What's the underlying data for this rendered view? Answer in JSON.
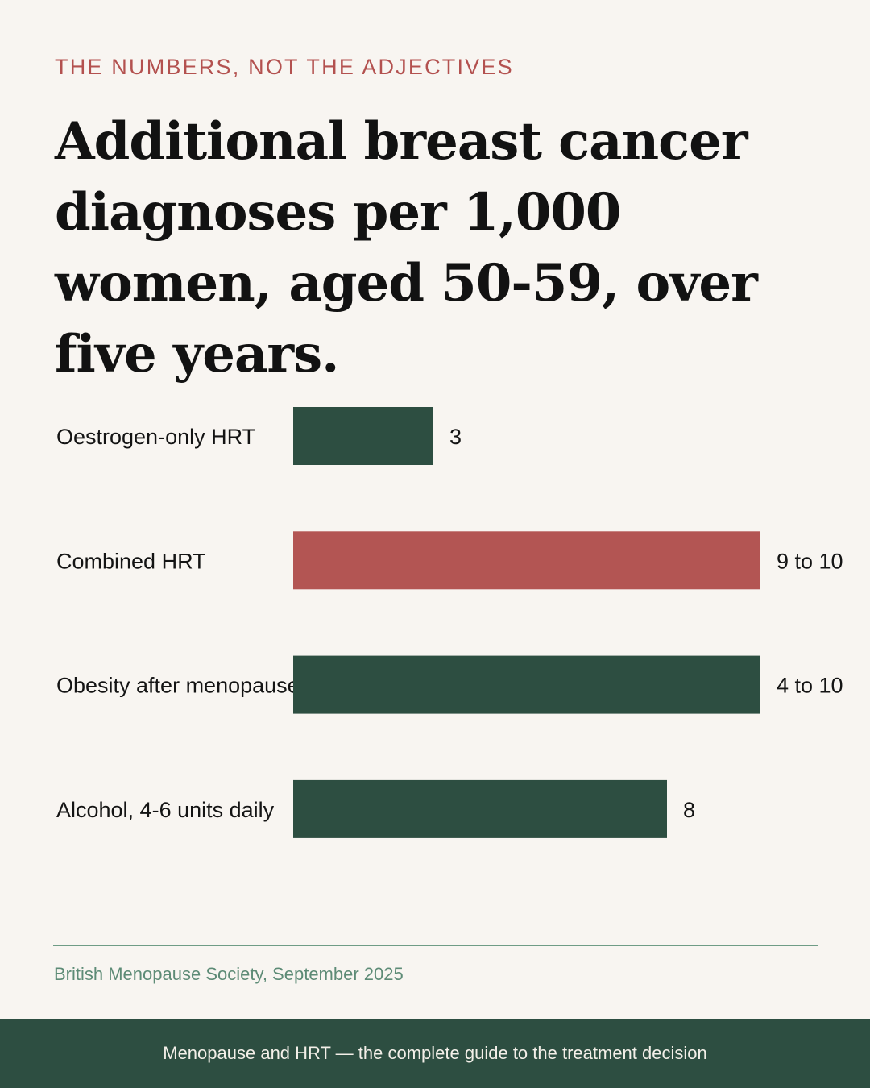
{
  "eyebrow": "THE NUMBERS, NOT THE ADJECTIVES",
  "headline": "Additional breast cancer diagnoses per 1,000 women, aged 50-59, over five years.",
  "source": "British Menopause Society, September 2025",
  "footer": "Menopause and HRT — the complete guide to the treatment decision",
  "colors": {
    "background": "#f8f5f1",
    "eyebrow": "#b3514f",
    "bar_default": "#2d4e41",
    "bar_highlight": "#b35553",
    "rule": "#6f9c86",
    "source": "#5d8b76",
    "footer_bg": "#2d4e41",
    "footer_text": "#f3efe8"
  },
  "chart_data": {
    "type": "bar",
    "orientation": "horizontal",
    "title": "Additional breast cancer diagnoses per 1,000 women, aged 50-59, over five years.",
    "categories": [
      "Oestrogen-only HRT",
      "Combined HRT",
      "Obesity after menopause",
      "Alcohol, 4-6 units daily"
    ],
    "values": [
      3,
      10,
      10,
      8
    ],
    "ranges": [
      null,
      [
        9,
        10
      ],
      [
        4,
        10
      ],
      null
    ],
    "value_labels": [
      "3",
      "9 to 10",
      "4 to 10",
      "8"
    ],
    "highlight": [
      false,
      true,
      false,
      false
    ],
    "xlim": [
      0,
      10
    ],
    "grid": false,
    "axes_visible": false
  }
}
